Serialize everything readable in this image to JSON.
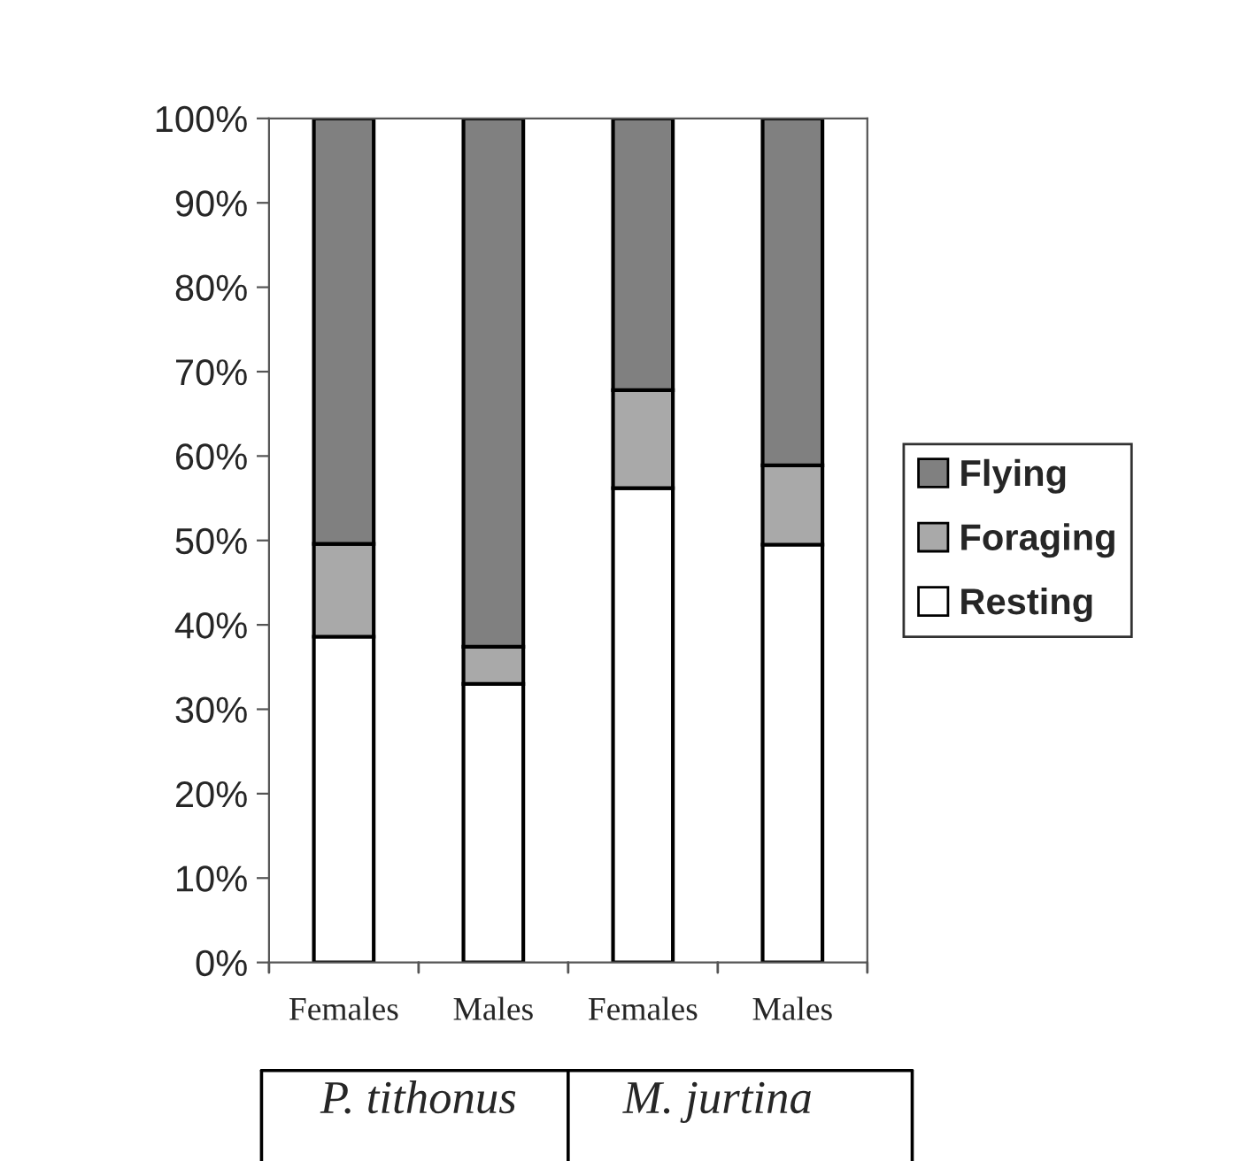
{
  "chart_data": {
    "type": "bar",
    "stacked": true,
    "categories": [
      "Females",
      "Males",
      "Females",
      "Males"
    ],
    "series": [
      {
        "name": "Resting",
        "color": "#ffffff",
        "values": [
          38.6,
          33.0,
          56.2,
          49.5
        ]
      },
      {
        "name": "Foraging",
        "color": "#a9a9a9",
        "values": [
          11.0,
          4.4,
          11.6,
          9.4
        ]
      },
      {
        "name": "Flying",
        "color": "#808080",
        "values": [
          50.4,
          62.6,
          32.2,
          41.1
        ]
      }
    ],
    "ylim": [
      0,
      100
    ],
    "yticks": [
      {
        "value": 0,
        "label": "0%"
      },
      {
        "value": 10,
        "label": "10%"
      },
      {
        "value": 20,
        "label": "20%"
      },
      {
        "value": 30,
        "label": "30%"
      },
      {
        "value": 40,
        "label": "40%"
      },
      {
        "value": 50,
        "label": "50%"
      },
      {
        "value": 60,
        "label": "60%"
      },
      {
        "value": 70,
        "label": "70%"
      },
      {
        "value": 80,
        "label": "80%"
      },
      {
        "value": 90,
        "label": "90%"
      },
      {
        "value": 100,
        "label": "100%"
      }
    ],
    "annotations": [
      "P. tithonus",
      "M. jurtina"
    ],
    "legend": "right",
    "grid": false
  }
}
